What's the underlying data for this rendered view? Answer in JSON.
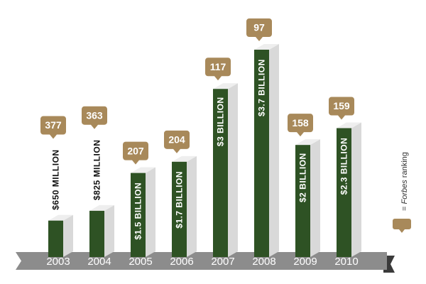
{
  "chart_data": {
    "type": "bar",
    "categories": [
      "2003",
      "2004",
      "2005",
      "2006",
      "2007",
      "2008",
      "2009",
      "2010"
    ],
    "values": [
      650,
      825,
      1500,
      1700,
      3000,
      3700,
      2000,
      2300
    ],
    "value_labels": [
      "$650 MILLION",
      "$825 MILLION",
      "$1.5 BILLION",
      "$1.7 BILLION",
      "$3 BILLION",
      "$3.7 BILLION",
      "$2 BILLION",
      "$2.3 BILLION"
    ],
    "rankings": [
      377,
      363,
      207,
      204,
      117,
      97,
      158,
      159
    ],
    "color": "#2e5224",
    "side_color": "#d9d9d9",
    "ranking_color": "#a8895a",
    "legend": {
      "prefix": "=",
      "name": "Forbes",
      "suffix": "ranking"
    }
  }
}
